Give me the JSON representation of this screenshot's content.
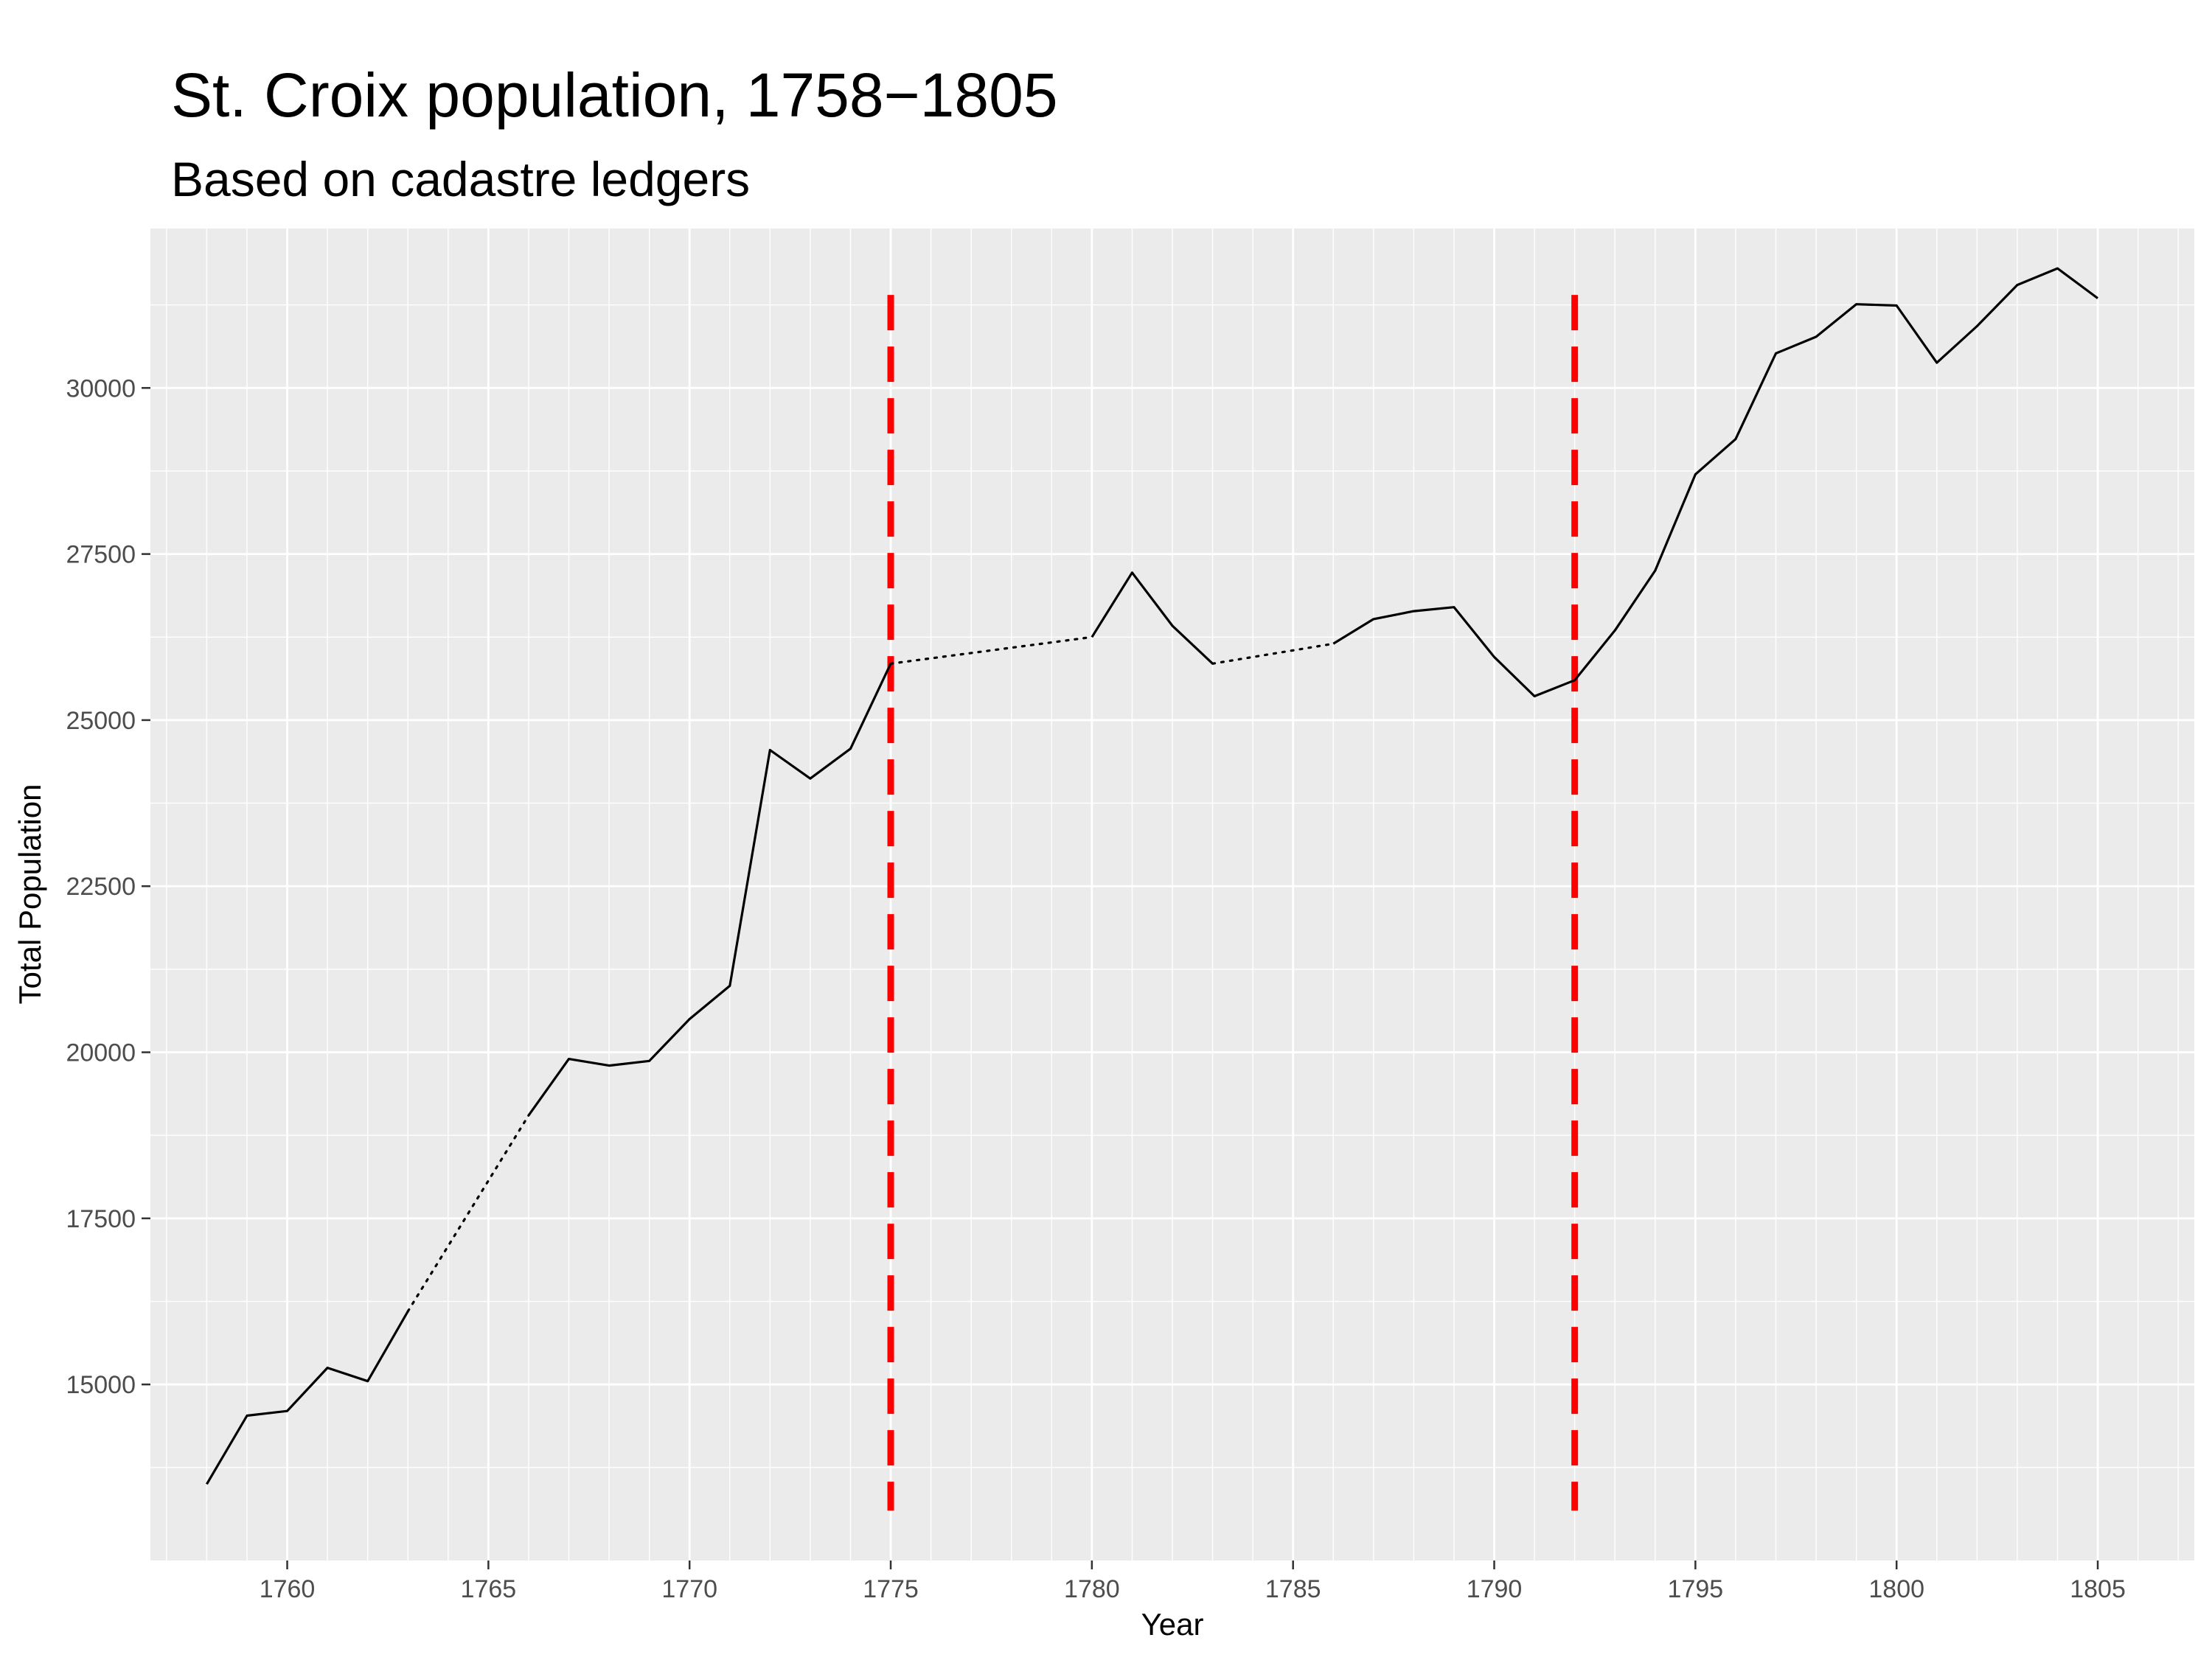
{
  "chart_data": {
    "type": "line",
    "title": "St. Croix population, 1758−1805",
    "subtitle": "Based on cadastre ledgers",
    "xlabel": "Year",
    "ylabel": "Total Population",
    "xlim": [
      1756.6,
      1807.4
    ],
    "ylim": [
      12350,
      32400
    ],
    "x_ticks": [
      1760,
      1765,
      1770,
      1775,
      1780,
      1785,
      1790,
      1795,
      1800,
      1805
    ],
    "x_tick_labels": [
      "1760",
      "1765",
      "1770",
      "1775",
      "1780",
      "1785",
      "1790",
      "1795",
      "1800",
      "1805"
    ],
    "y_ticks": [
      15000,
      17500,
      20000,
      22500,
      25000,
      27500,
      30000
    ],
    "y_tick_labels": [
      "15000",
      "17500",
      "20000",
      "22500",
      "25000",
      "27500",
      "30000"
    ],
    "grid": true,
    "panel_background": "#ebebeb",
    "grid_color": "#ffffff",
    "series": [
      {
        "line_style": "solid",
        "color": "#000000",
        "x": [
          1758,
          1759,
          1760,
          1761,
          1762,
          1763,
          1766,
          1767,
          1768,
          1769,
          1770,
          1771,
          1772,
          1773,
          1774,
          1775,
          1780,
          1781,
          1782,
          1783,
          1786,
          1787,
          1788,
          1789,
          1790,
          1791,
          1792,
          1793,
          1794,
          1795,
          1796,
          1797,
          1798,
          1799,
          1800,
          1801,
          1802,
          1803,
          1804,
          1805
        ],
        "y": [
          13500,
          14530,
          14600,
          15250,
          15050,
          16100,
          19050,
          19900,
          19800,
          19870,
          20500,
          21000,
          24550,
          24120,
          24570,
          25850,
          26250,
          27220,
          26420,
          25850,
          26150,
          26520,
          26640,
          26700,
          25950,
          25360,
          25600,
          26350,
          27250,
          28700,
          29230,
          30520,
          30770,
          31260,
          31240,
          30380,
          30930,
          31550,
          31800,
          31350
        ],
        "segments": [
          [
            1758,
            1763
          ],
          [
            1766,
            1775
          ],
          [
            1780,
            1783
          ],
          [
            1786,
            1805
          ]
        ]
      },
      {
        "line_style": "dotted",
        "color": "#000000",
        "segments": [
          {
            "x": [
              1763,
              1766
            ],
            "y": [
              16100,
              19050
            ]
          },
          {
            "x": [
              1775,
              1780
            ],
            "y": [
              25850,
              26250
            ]
          },
          {
            "x": [
              1783,
              1786
            ],
            "y": [
              25850,
              26150
            ]
          }
        ]
      }
    ],
    "vlines": [
      {
        "x": 1775,
        "y_range": [
          13100,
          31400
        ],
        "color": "#ff0000",
        "line_style": "dashed"
      },
      {
        "x": 1792,
        "y_range": [
          13100,
          31400
        ],
        "color": "#ff0000",
        "line_style": "dashed"
      }
    ]
  }
}
